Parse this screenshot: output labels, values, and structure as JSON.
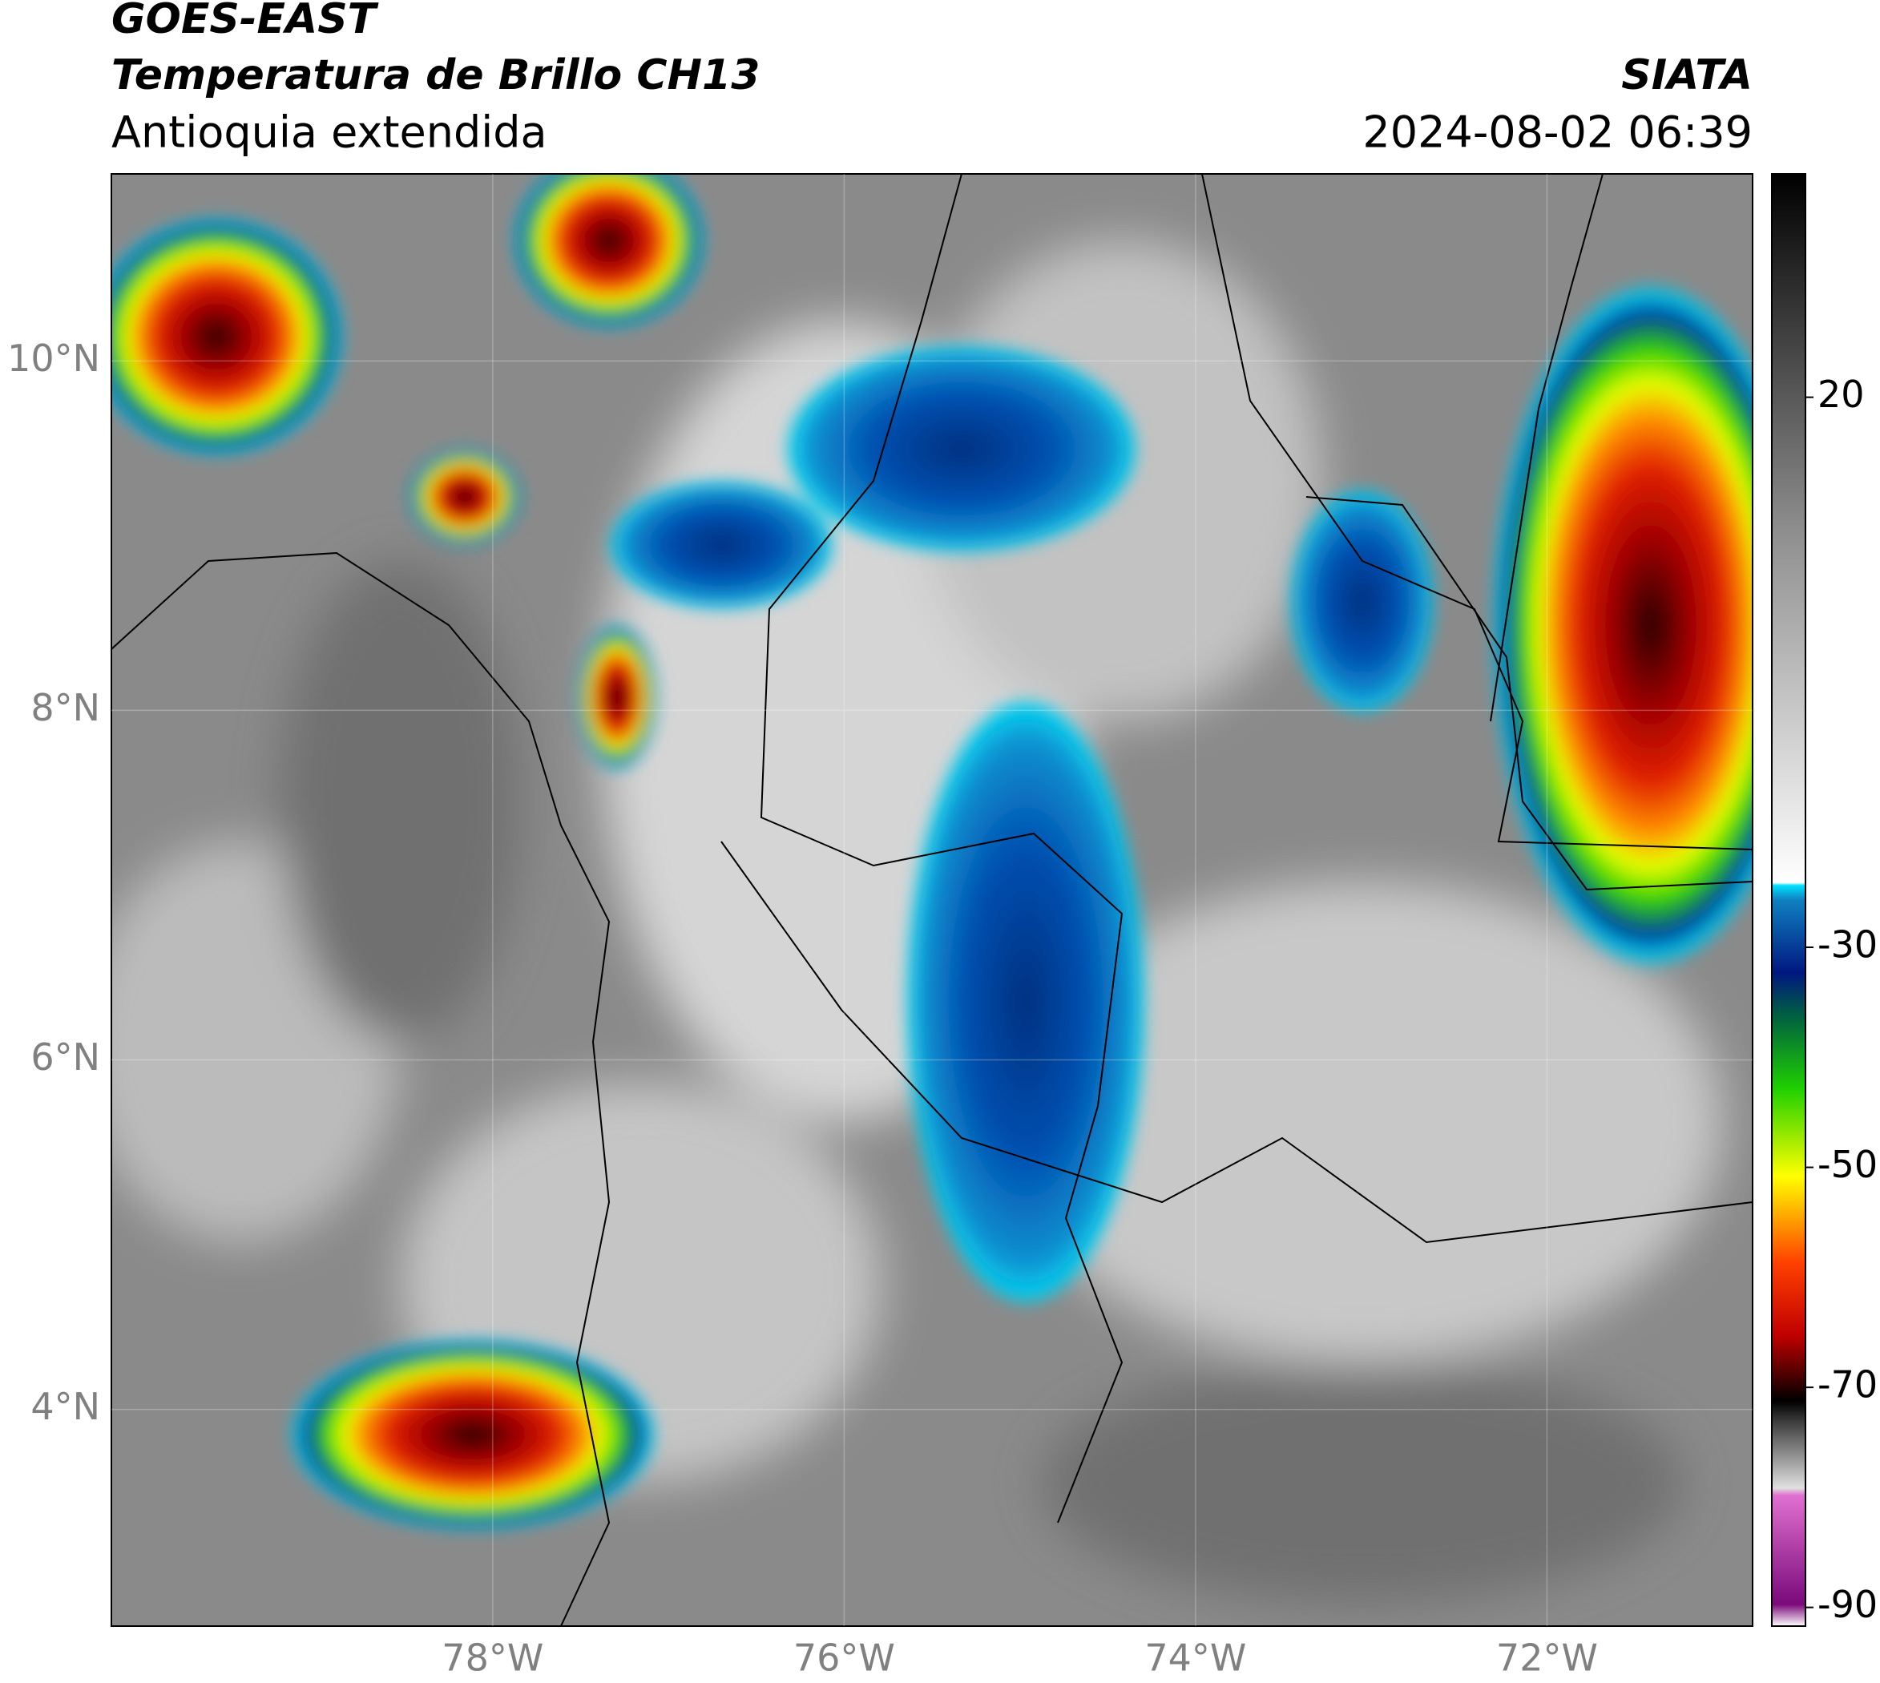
{
  "header": {
    "title": "GOES-EAST",
    "subtitle": "Temperatura de Brillo CH13",
    "region": "Antioquia extendida",
    "source": "SIATA",
    "datetime": "2024-08-02 06:39"
  },
  "map": {
    "xlim": [
      -80.17,
      -70.83
    ],
    "ylim": [
      2.76,
      11.07
    ],
    "xticks": [
      {
        "value": -78,
        "label": "78°W"
      },
      {
        "value": -76,
        "label": "76°W"
      },
      {
        "value": -74,
        "label": "74°W"
      },
      {
        "value": -72,
        "label": "72°W"
      }
    ],
    "yticks": [
      {
        "value": 4,
        "label": "4°N"
      },
      {
        "value": 6,
        "label": "6°N"
      },
      {
        "value": 8,
        "label": "8°N"
      },
      {
        "value": 10,
        "label": "10°N"
      }
    ]
  },
  "colorbar": {
    "ylim": [
      -91.7,
      40.3
    ],
    "ticks": [
      -90,
      -70,
      -50,
      -30,
      20
    ]
  }
}
